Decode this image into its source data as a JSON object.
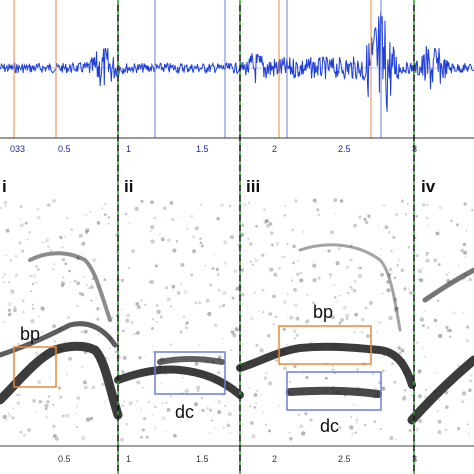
{
  "colors": {
    "waveform": "#1f3fd8",
    "orange_marker": "#e8893a",
    "blue_marker": "#6b7fd8",
    "green_dash": "#2f9e2f",
    "spectrogram_dark": "#1a1a1a",
    "axis_text": "#1a2a8a"
  },
  "waveform_axis": {
    "ticks": [
      "033",
      "0.5",
      "1",
      "1.5",
      "2",
      "2.5",
      "3"
    ]
  },
  "sections": [
    {
      "label": "i"
    },
    {
      "label": "ii"
    },
    {
      "label": "iii"
    },
    {
      "label": "iv"
    }
  ],
  "annotations": {
    "bp_left": "bp",
    "bp_right": "bp",
    "dc_middle": "dc",
    "dc_right": "dc"
  },
  "spectrogram_axis": {
    "ticks": [
      "0.5",
      "1",
      "1.5",
      "2",
      "2.5",
      "3"
    ]
  },
  "icons": {
    "waveform": "audio-waveform",
    "spectrogram": "spectrogram-image"
  }
}
